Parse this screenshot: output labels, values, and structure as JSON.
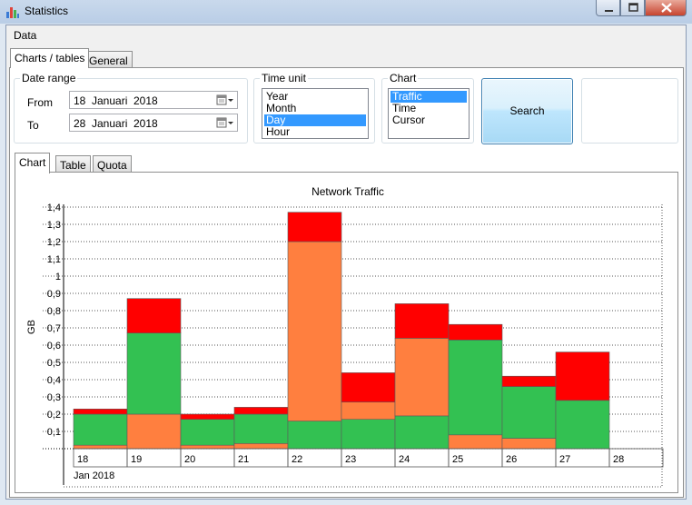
{
  "window": {
    "title": "Statistics"
  },
  "menu": {
    "data": "Data"
  },
  "top_tabs": [
    "Charts / tables",
    "General"
  ],
  "date_range": {
    "title": "Date range",
    "from_label": "From",
    "to_label": "To",
    "from": {
      "day": "18",
      "month": "Januari",
      "year": "2018"
    },
    "to": {
      "day": "28",
      "month": "Januari",
      "year": "2018"
    }
  },
  "time_unit": {
    "title": "Time unit",
    "options": [
      "Year",
      "Month",
      "Day",
      "Hour"
    ],
    "selected": "Day"
  },
  "chart_select": {
    "title": "Chart",
    "options": [
      "Traffic",
      "Time",
      "Cursor"
    ],
    "selected": "Traffic"
  },
  "search_label": "Search",
  "sub_tabs": [
    "Chart",
    "Table",
    "Quota"
  ],
  "colors": {
    "green": "#33c152",
    "orange": "#ff7f3f",
    "red": "#ff0000",
    "selection": "#3399ff"
  },
  "chart_data": {
    "type": "bar",
    "stacked": true,
    "title": "Network Traffic",
    "ylabel": "GB",
    "xlabel": "Jan 2018",
    "ylim": [
      0,
      1.4
    ],
    "yticks": [
      "0,1",
      "0,2",
      "0,3",
      "0,4",
      "0,5",
      "0,6",
      "0,7",
      "0,8",
      "0,9",
      "1",
      "1,1",
      "1,2",
      "1,3",
      "1,4"
    ],
    "categories": [
      "18",
      "19",
      "20",
      "21",
      "22",
      "23",
      "24",
      "25",
      "26",
      "27",
      "28"
    ],
    "series": [
      {
        "color": "#ff7f3f",
        "values": [
          0.02,
          0.2,
          0.02,
          0.03,
          0.0,
          0.0,
          0.0,
          0.08,
          0.06,
          0.0,
          0.0
        ]
      },
      {
        "color": "#33c152",
        "values": [
          0.18,
          0.47,
          0.15,
          0.17,
          0.16,
          0.17,
          0.19,
          0.55,
          0.3,
          0.28,
          0.0
        ]
      },
      {
        "color": "#ff7f3f",
        "values": [
          0.0,
          0.0,
          0.0,
          0.0,
          1.04,
          0.1,
          0.45,
          0.0,
          0.0,
          0.0,
          0.0
        ]
      },
      {
        "color": "#ff0000",
        "values": [
          0.03,
          0.2,
          0.03,
          0.04,
          0.17,
          0.17,
          0.2,
          0.09,
          0.06,
          0.28,
          0.0
        ]
      }
    ]
  }
}
